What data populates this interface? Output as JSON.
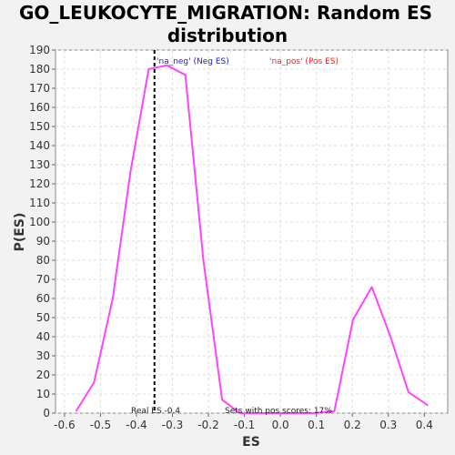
{
  "chart_data": {
    "type": "line",
    "title_lines": [
      "GO_LEUKOCYTE_MIGRATION: Random ES",
      "distribution"
    ],
    "xlabel": "ES",
    "ylabel": "P(ES)",
    "xlim": [
      -0.625,
      0.465
    ],
    "ylim": [
      0,
      190
    ],
    "xticks": [
      -0.6,
      -0.5,
      -0.4,
      -0.3,
      -0.2,
      -0.1,
      0.0,
      0.1,
      0.2,
      0.3,
      0.4
    ],
    "xtick_labels": [
      "-0.6",
      "-0.5",
      "-0.4",
      "-0.3",
      "-0.2",
      "-0.1",
      "0.0",
      "0.1",
      "0.2",
      "0.3",
      "0.4"
    ],
    "yticks": [
      0,
      10,
      20,
      30,
      40,
      50,
      60,
      70,
      80,
      90,
      100,
      110,
      120,
      130,
      140,
      150,
      160,
      170,
      180,
      190
    ],
    "ytick_labels": [
      "0",
      "10",
      "20",
      "30",
      "40",
      "50",
      "60",
      "70",
      "80",
      "90",
      "100",
      "110",
      "120",
      "130",
      "140",
      "150",
      "160",
      "170",
      "180",
      "190"
    ],
    "grid": true,
    "series": [
      {
        "color": "#ff44ff",
        "x": [
          -0.568,
          -0.518,
          -0.466,
          -0.416,
          -0.366,
          -0.316,
          -0.264,
          -0.214,
          -0.162,
          -0.112,
          -0.06,
          -0.01,
          0.04,
          0.09,
          0.15,
          0.202,
          0.254,
          0.306,
          0.356,
          0.41
        ],
        "y": [
          1,
          16,
          60,
          127,
          180,
          182,
          177,
          80,
          7,
          0,
          0,
          0,
          0,
          0,
          1,
          49,
          66,
          40,
          11,
          4
        ]
      }
    ],
    "real_es": {
      "value": -0.35,
      "label": "Real ES -0.4"
    },
    "annotations": {
      "na_neg": {
        "text": "'na_neg' (Neg ES)",
        "color": "#2222cc"
      },
      "na_pos": {
        "text": "'na_pos' (Pos ES)",
        "color": "#ee2222"
      },
      "pos_scores": {
        "text": "Sets with pos scores: 17%",
        "color": "#222222"
      }
    },
    "colors": {
      "plot_background": "#ffffff",
      "page_background": "#f2f2f2",
      "grid": "#dddddd"
    }
  }
}
